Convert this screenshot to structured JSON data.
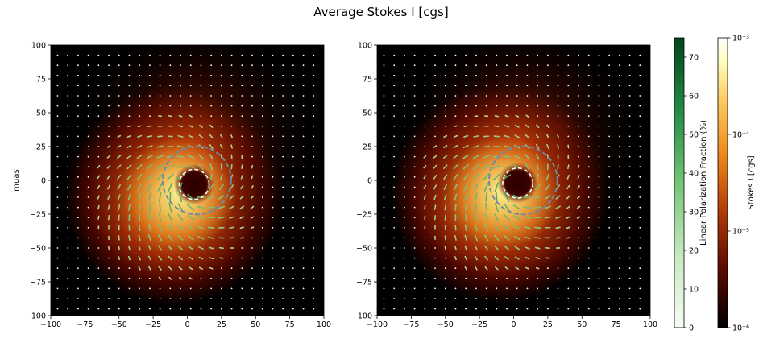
{
  "chart_data": {
    "type": "heatmap",
    "title": "Average Stokes I [cgs]",
    "panels": [
      {
        "name": "left",
        "ylabel": "muas",
        "xlabel": "",
        "xlim": [
          -100,
          100
        ],
        "ylim": [
          -100,
          100
        ],
        "xticks": [
          -100,
          -75,
          -50,
          -25,
          0,
          25,
          50,
          75,
          100
        ],
        "yticks": [
          100,
          75,
          50,
          25,
          0,
          -25,
          -50,
          -75,
          -100
        ],
        "xtick_labels": [
          "−100",
          "−75",
          "−50",
          "−25",
          "0",
          "25",
          "50",
          "75",
          "100"
        ],
        "ytick_labels": [
          "100",
          "75",
          "50",
          "25",
          "0",
          "−25",
          "−50",
          "−75",
          "−100"
        ],
        "emission_center": [
          -10,
          -12
        ],
        "shadow_center": [
          5,
          -3
        ],
        "shadow_radius": 10,
        "inner_circle": {
          "center": [
            5,
            -3
          ],
          "radius": 11,
          "color": "#ffffff",
          "style": "dashed"
        },
        "outer_circle": {
          "center": [
            7,
            0
          ],
          "radius": 25,
          "color": "#6e8aa8",
          "style": "dashed"
        }
      },
      {
        "name": "right",
        "ylabel": "",
        "xlabel": "",
        "xlim": [
          -100,
          100
        ],
        "ylim": [
          -100,
          100
        ],
        "xticks": [
          -100,
          -75,
          -50,
          -25,
          0,
          25,
          50,
          75,
          100
        ],
        "yticks": [
          100,
          75,
          50,
          25,
          0,
          -25,
          -50,
          -75,
          -100
        ],
        "xtick_labels": [
          "−100",
          "−75",
          "−50",
          "−25",
          "0",
          "25",
          "50",
          "75",
          "100"
        ],
        "ytick_labels": [
          "100",
          "75",
          "50",
          "25",
          "0",
          "−25",
          "−50",
          "−75",
          "−100"
        ],
        "emission_center": [
          -10,
          -10
        ],
        "shadow_center": [
          3,
          -2
        ],
        "shadow_radius": 10,
        "inner_circle": {
          "center": [
            3,
            -2
          ],
          "radius": 11,
          "color": "#ffffff",
          "style": "dashed"
        },
        "outer_circle": {
          "center": [
            7,
            0
          ],
          "radius": 25,
          "color": "#6e8aa8",
          "style": "dashed"
        }
      }
    ],
    "colorbars": [
      {
        "name": "linear-polarization-fraction",
        "label": "Linear Polarization Fraction (%)",
        "range": [
          0,
          75
        ],
        "ticks": [
          0,
          10,
          20,
          30,
          40,
          50,
          60,
          70
        ],
        "tick_labels": [
          "0",
          "10",
          "20",
          "30",
          "40",
          "50",
          "60",
          "70"
        ],
        "colormap": "Greens",
        "scale": "linear"
      },
      {
        "name": "stokes-i",
        "label": "Stokes I [cgs]",
        "range": [
          1e-06,
          0.001
        ],
        "ticks": [
          1e-06,
          1e-05,
          0.0001,
          0.001
        ],
        "tick_labels": [
          "10⁻⁶",
          "10⁻⁵",
          "10⁻⁴",
          "10⁻³"
        ],
        "colormap": "afmhot",
        "scale": "log"
      }
    ]
  }
}
